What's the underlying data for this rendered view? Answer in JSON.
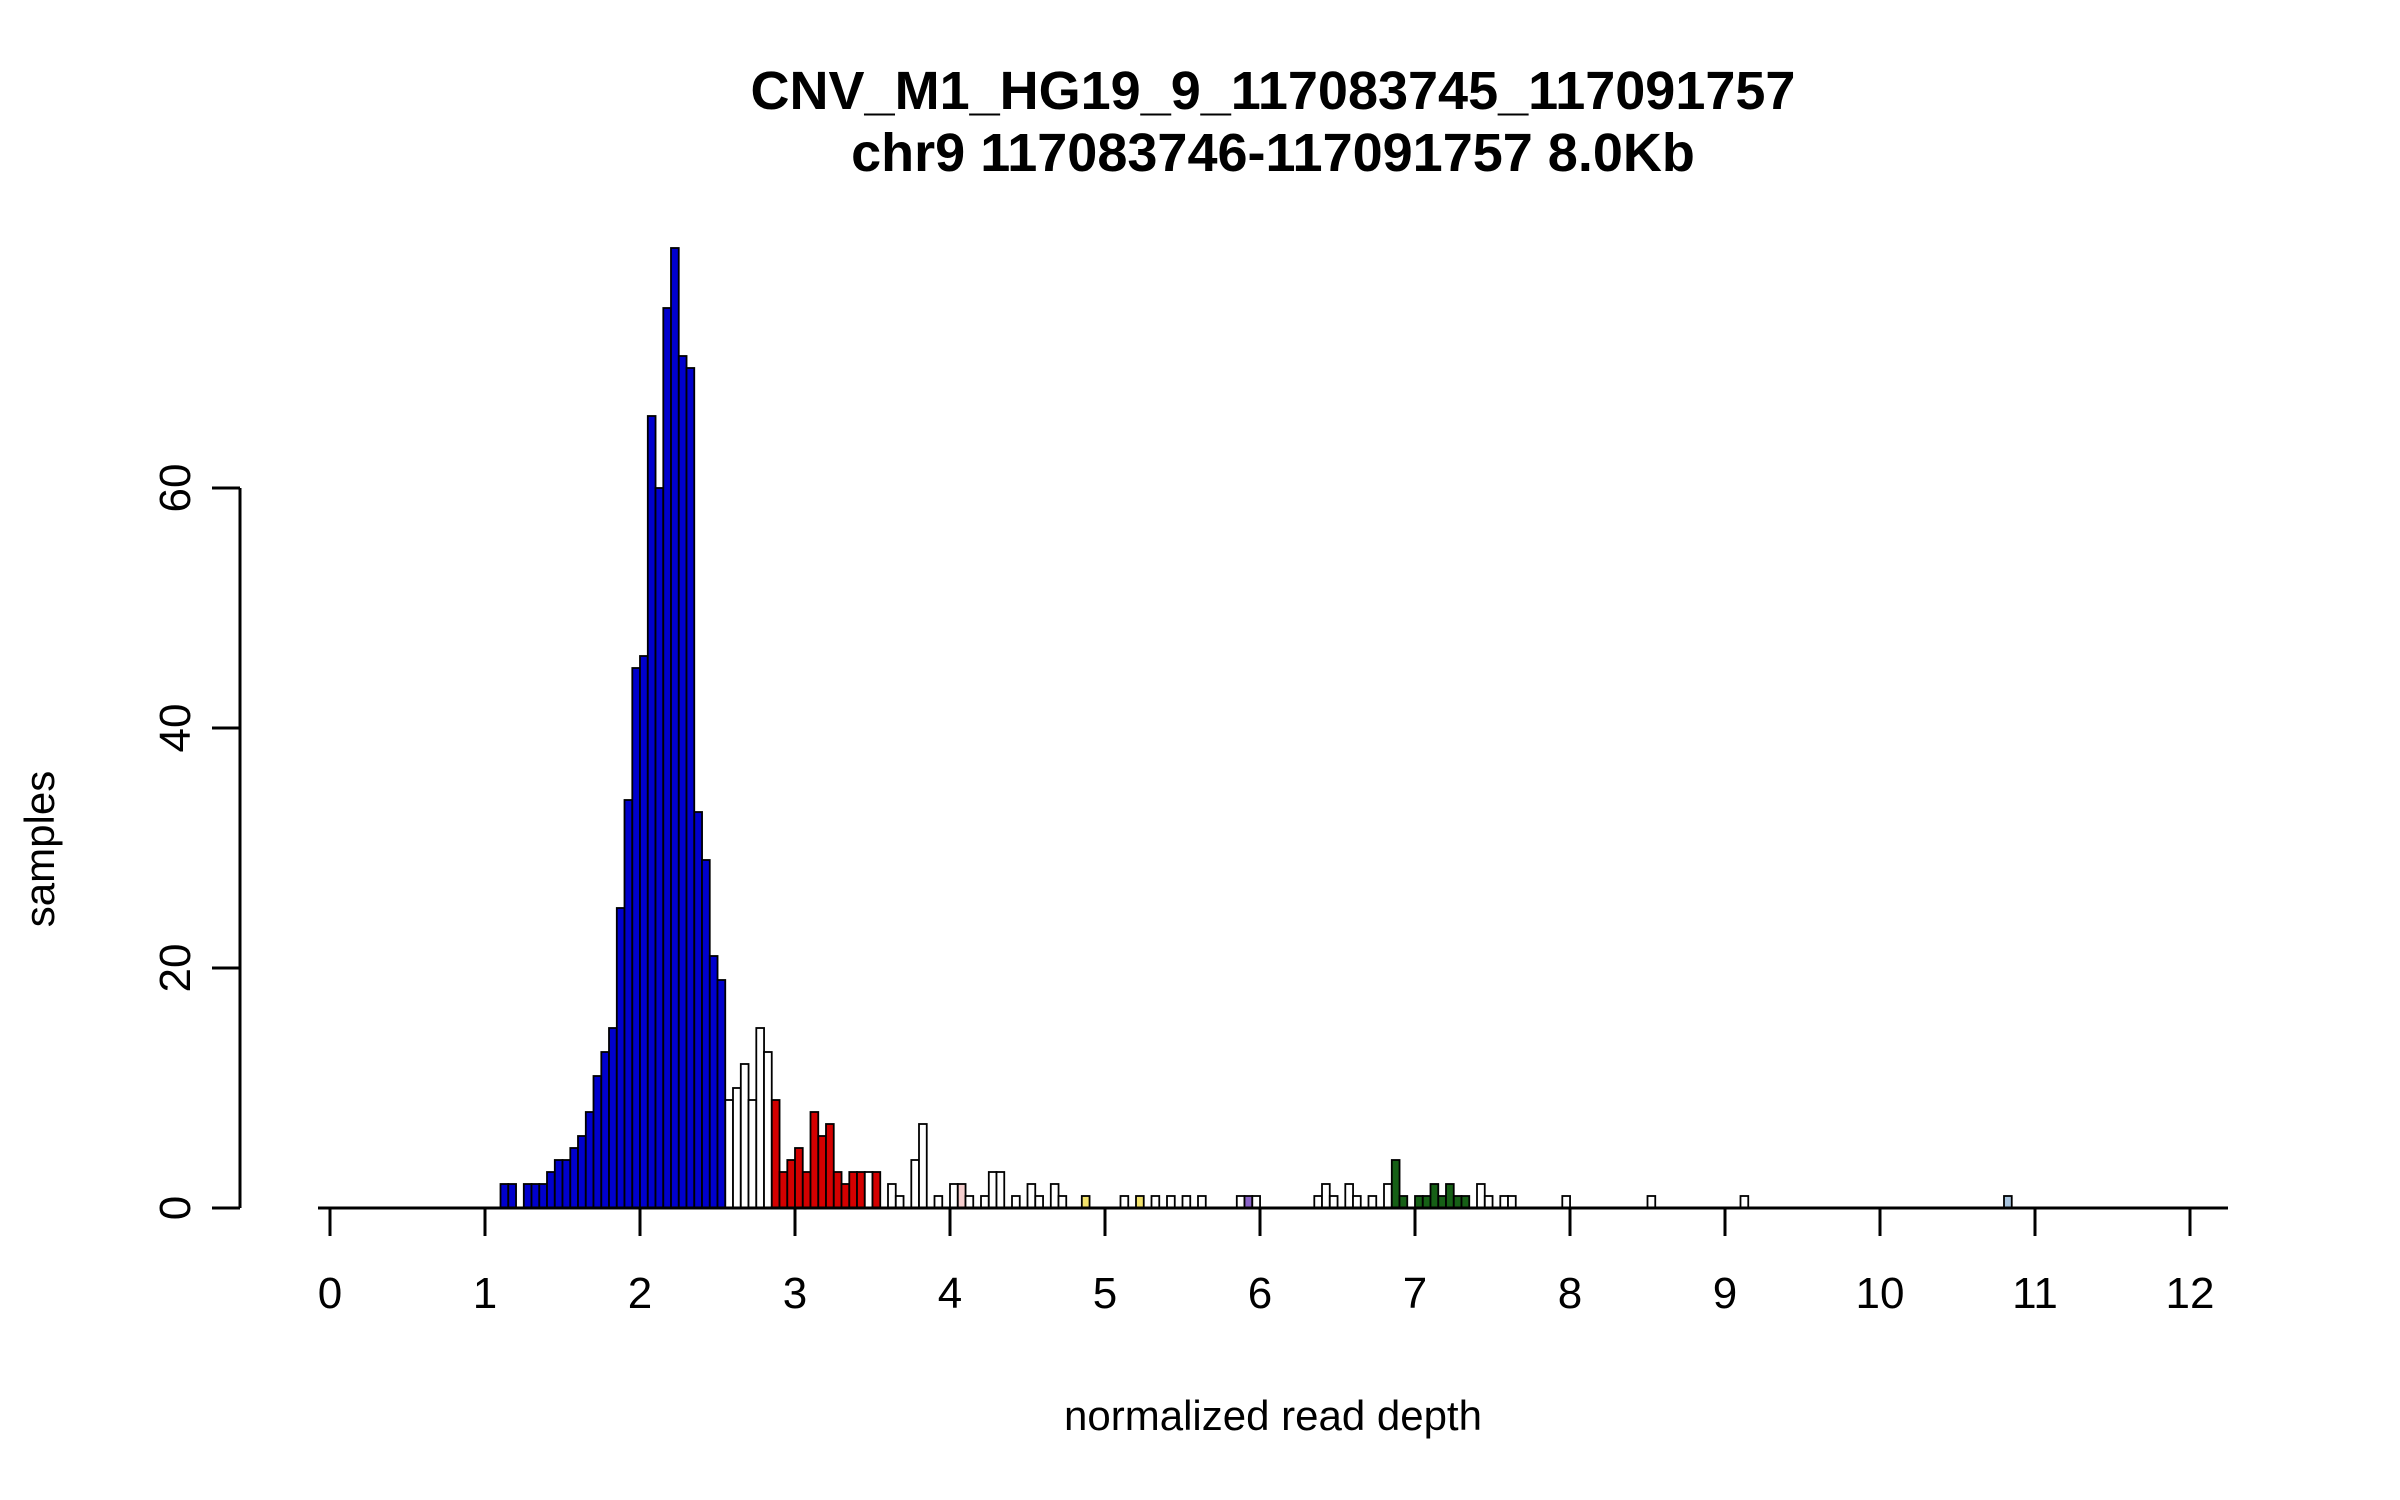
{
  "chart": {
    "title": "CNV_M1_HG19_9_117083745_117091757",
    "subtitle": "chr9 117083746-117091757 8.0Kb",
    "xlabel": "normalized read depth",
    "ylabel": "samples"
  },
  "chart_data": {
    "type": "bar",
    "title": "CNV_M1_HG19_9_117083745_117091757",
    "subtitle": "chr9 117083746-117091757 8.0Kb",
    "xlabel": "normalized read depth",
    "ylabel": "samples",
    "xlim": [
      0,
      12
    ],
    "ylim": [
      0,
      80
    ],
    "x_ticks": [
      0,
      1,
      2,
      3,
      4,
      5,
      6,
      7,
      8,
      9,
      10,
      11,
      12
    ],
    "y_ticks": [
      0,
      20,
      40,
      60
    ],
    "grid": false,
    "bin_width": 0.05,
    "colors": {
      "b": "#0000CD",
      "w": "#FFFFFF",
      "r": "#D40000",
      "g": "#166016",
      "y": "#F2E26B",
      "v": "#8A63C9",
      "lb": "#A8C4DE",
      "p": "#F6CFCF"
    },
    "bars": [
      [
        1.1,
        2,
        "b"
      ],
      [
        1.15,
        2,
        "b"
      ],
      [
        1.25,
        2,
        "b"
      ],
      [
        1.3,
        2,
        "b"
      ],
      [
        1.35,
        2,
        "b"
      ],
      [
        1.4,
        3,
        "b"
      ],
      [
        1.45,
        4,
        "b"
      ],
      [
        1.5,
        4,
        "b"
      ],
      [
        1.55,
        5,
        "b"
      ],
      [
        1.6,
        6,
        "b"
      ],
      [
        1.65,
        8,
        "b"
      ],
      [
        1.7,
        11,
        "b"
      ],
      [
        1.75,
        13,
        "b"
      ],
      [
        1.8,
        15,
        "b"
      ],
      [
        1.85,
        25,
        "b"
      ],
      [
        1.9,
        34,
        "b"
      ],
      [
        1.95,
        45,
        "b"
      ],
      [
        2.0,
        46,
        "b"
      ],
      [
        2.05,
        66,
        "b"
      ],
      [
        2.1,
        60,
        "b"
      ],
      [
        2.15,
        75,
        "b"
      ],
      [
        2.2,
        80,
        "b"
      ],
      [
        2.25,
        71,
        "b"
      ],
      [
        2.3,
        70,
        "b"
      ],
      [
        2.35,
        33,
        "b"
      ],
      [
        2.4,
        29,
        "b"
      ],
      [
        2.45,
        21,
        "b"
      ],
      [
        2.5,
        19,
        "b"
      ],
      [
        2.55,
        9,
        "w"
      ],
      [
        2.6,
        10,
        "w"
      ],
      [
        2.65,
        12,
        "w"
      ],
      [
        2.7,
        9,
        "w"
      ],
      [
        2.75,
        15,
        "w"
      ],
      [
        2.8,
        13,
        "w"
      ],
      [
        2.85,
        9,
        "r"
      ],
      [
        2.9,
        3,
        "r"
      ],
      [
        2.95,
        4,
        "r"
      ],
      [
        3.0,
        5,
        "r"
      ],
      [
        3.05,
        3,
        "r"
      ],
      [
        3.1,
        8,
        "r"
      ],
      [
        3.15,
        6,
        "r"
      ],
      [
        3.2,
        7,
        "r"
      ],
      [
        3.25,
        3,
        "r"
      ],
      [
        3.3,
        2,
        "r"
      ],
      [
        3.35,
        3,
        "r"
      ],
      [
        3.4,
        3,
        "r"
      ],
      [
        3.45,
        3,
        "w"
      ],
      [
        3.5,
        3,
        "r"
      ],
      [
        3.6,
        2,
        "w"
      ],
      [
        3.65,
        1,
        "w"
      ],
      [
        3.75,
        4,
        "w"
      ],
      [
        3.8,
        7,
        "w"
      ],
      [
        3.9,
        1,
        "w"
      ],
      [
        4.0,
        2,
        "w"
      ],
      [
        4.05,
        2,
        "p"
      ],
      [
        4.1,
        1,
        "w"
      ],
      [
        4.2,
        1,
        "w"
      ],
      [
        4.25,
        3,
        "w"
      ],
      [
        4.3,
        3,
        "w"
      ],
      [
        4.4,
        1,
        "w"
      ],
      [
        4.5,
        2,
        "w"
      ],
      [
        4.55,
        1,
        "w"
      ],
      [
        4.65,
        2,
        "w"
      ],
      [
        4.7,
        1,
        "w"
      ],
      [
        4.85,
        1,
        "y"
      ],
      [
        5.1,
        1,
        "w"
      ],
      [
        5.2,
        1,
        "y"
      ],
      [
        5.3,
        1,
        "w"
      ],
      [
        5.4,
        1,
        "w"
      ],
      [
        5.5,
        1,
        "w"
      ],
      [
        5.6,
        1,
        "w"
      ],
      [
        5.85,
        1,
        "w"
      ],
      [
        5.9,
        1,
        "v"
      ],
      [
        5.95,
        1,
        "w"
      ],
      [
        6.35,
        1,
        "w"
      ],
      [
        6.4,
        2,
        "w"
      ],
      [
        6.45,
        1,
        "w"
      ],
      [
        6.55,
        2,
        "w"
      ],
      [
        6.6,
        1,
        "w"
      ],
      [
        6.7,
        1,
        "w"
      ],
      [
        6.8,
        2,
        "w"
      ],
      [
        6.85,
        4,
        "g"
      ],
      [
        6.9,
        1,
        "g"
      ],
      [
        7.0,
        1,
        "g"
      ],
      [
        7.05,
        1,
        "g"
      ],
      [
        7.1,
        2,
        "g"
      ],
      [
        7.15,
        1,
        "g"
      ],
      [
        7.2,
        2,
        "g"
      ],
      [
        7.25,
        1,
        "g"
      ],
      [
        7.3,
        1,
        "g"
      ],
      [
        7.4,
        2,
        "w"
      ],
      [
        7.45,
        1,
        "w"
      ],
      [
        7.55,
        1,
        "w"
      ],
      [
        7.6,
        1,
        "w"
      ],
      [
        7.95,
        1,
        "w"
      ],
      [
        8.5,
        1,
        "w"
      ],
      [
        9.1,
        1,
        "w"
      ],
      [
        10.8,
        1,
        "lb"
      ]
    ]
  }
}
